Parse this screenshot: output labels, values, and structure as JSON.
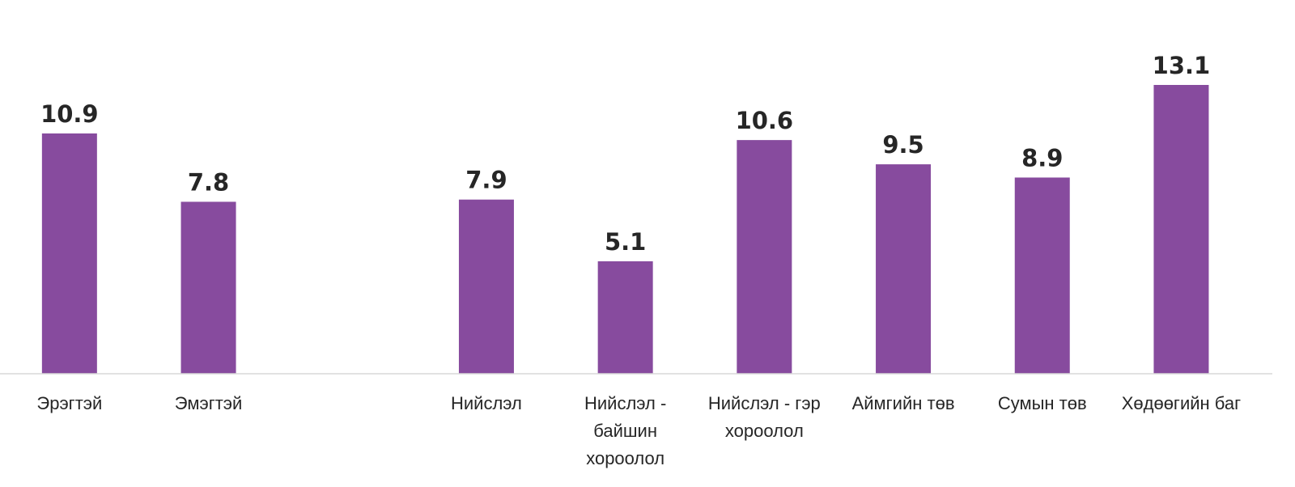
{
  "chart_data": {
    "type": "bar",
    "categories": [
      "Эрэгтэй",
      "Эмэгтэй",
      "",
      "Нийслэл",
      "Нийслэл - байшин хороолол",
      "Нийслэл - гэр хороолол",
      "Аймгийн төв",
      "Сумын төв",
      "Хөдөөгийн баг"
    ],
    "category_label_lines": [
      [
        "Эрэгтэй"
      ],
      [
        "Эмэгтэй"
      ],
      [],
      [
        "Нийслэл"
      ],
      [
        "Нийслэл -",
        "байшин",
        "хороолол"
      ],
      [
        "Нийслэл - гэр",
        "хороолол"
      ],
      [
        "Аймгийн төв"
      ],
      [
        "Сумын төв"
      ],
      [
        "Хөдөөгийн баг"
      ]
    ],
    "values": [
      10.9,
      7.8,
      null,
      7.9,
      5.1,
      10.6,
      9.5,
      8.9,
      13.1
    ],
    "data_labels": [
      "10.9",
      "7.8",
      "",
      "7.9",
      "5.1",
      "10.6",
      "9.5",
      "8.9",
      "13.1"
    ],
    "ylim": [
      0,
      13.1
    ],
    "grid": false,
    "legend": "none",
    "bar_color": "#874b9e",
    "title": "",
    "xlabel": "",
    "ylabel": ""
  }
}
